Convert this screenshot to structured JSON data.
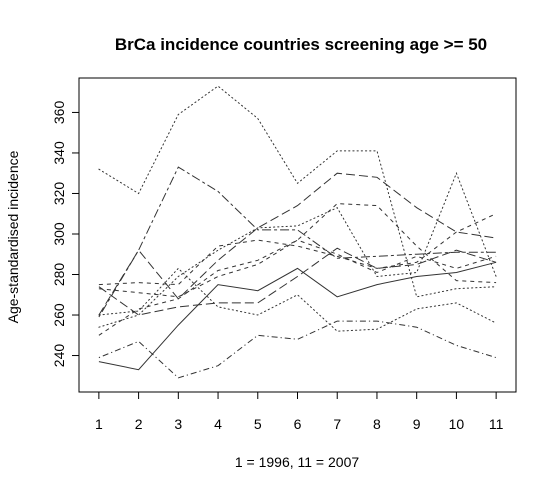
{
  "chart_data": {
    "type": "line",
    "title": "BrCa incidence countries screening age >= 50",
    "xlabel": "1 = 1996, 11 = 2007",
    "ylabel": "Age-standardised incidence",
    "x": [
      1,
      2,
      3,
      4,
      5,
      6,
      7,
      8,
      9,
      10,
      11
    ],
    "xlim": [
      0.5,
      11.5
    ],
    "ylim": [
      222,
      377
    ],
    "yticks": [
      240,
      260,
      280,
      300,
      320,
      340,
      360
    ],
    "grid": false,
    "legend": "none",
    "series": [
      {
        "style": "solid",
        "values": [
          237,
          233,
          255,
          275,
          272,
          283,
          269,
          275,
          279,
          281,
          286
        ]
      },
      {
        "style": "dotted",
        "values": [
          332,
          320,
          359,
          373,
          357,
          325,
          341,
          341,
          269,
          273,
          274
        ]
      },
      {
        "style": "dotdash",
        "values": [
          239,
          247,
          229,
          235,
          250,
          248,
          257,
          257,
          254,
          245,
          239
        ]
      },
      {
        "style": "longdash",
        "values": [
          260,
          292,
          268,
          287,
          303,
          314,
          330,
          328,
          313,
          301,
          298
        ]
      },
      {
        "style": "dashed",
        "values": [
          275,
          276,
          275,
          294,
          297,
          294,
          289,
          283,
          286,
          301,
          310
        ]
      },
      {
        "style": "twodash",
        "values": [
          259,
          292,
          333,
          321,
          302,
          302,
          288,
          289,
          290,
          291,
          291
        ]
      },
      {
        "style": "dashed",
        "values": [
          250,
          263,
          268,
          282,
          287,
          297,
          315,
          314,
          294,
          277,
          276
        ]
      },
      {
        "style": "dotted",
        "values": [
          254,
          260,
          279,
          292,
          303,
          304,
          313,
          279,
          281,
          330,
          279
        ]
      },
      {
        "style": "dashed",
        "values": [
          273,
          271,
          269,
          279,
          285,
          297,
          290,
          281,
          289,
          283,
          289
        ]
      },
      {
        "style": "dotted",
        "values": [
          260,
          262,
          283,
          264,
          260,
          270,
          252,
          253,
          263,
          266,
          256
        ]
      },
      {
        "style": "longdash",
        "values": [
          274,
          260,
          264,
          266,
          266,
          279,
          293,
          283,
          285,
          292,
          286
        ]
      }
    ]
  }
}
